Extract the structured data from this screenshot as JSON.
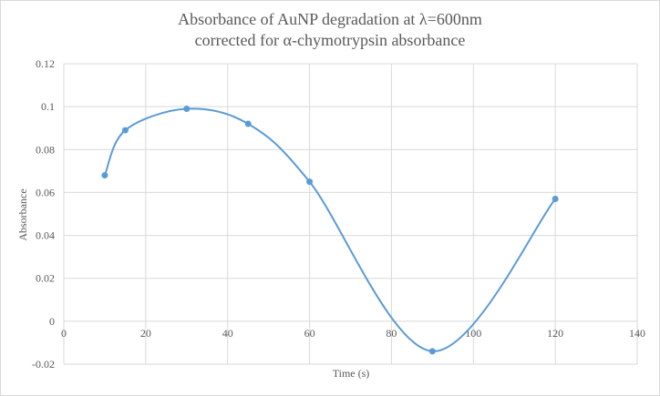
{
  "chart_data": {
    "type": "line",
    "title_line1": "Absorbance of AuNP degradation at λ=600nm",
    "title_line2": "corrected for α-chymotrypsin absorbance",
    "xlabel": "Time (s)",
    "ylabel": "Absorbance",
    "xlim": [
      0,
      140
    ],
    "ylim": [
      -0.02,
      0.12
    ],
    "x_ticks": [
      0,
      20,
      40,
      60,
      80,
      100,
      120,
      140
    ],
    "y_ticks": [
      -0.02,
      0,
      0.02,
      0.04,
      0.06,
      0.08,
      0.1,
      0.12
    ],
    "x_tick_labels": [
      "0",
      "20",
      "40",
      "60",
      "80",
      "100",
      "120",
      "140"
    ],
    "y_tick_labels": [
      "-0.02",
      "0",
      "0.02",
      "0.04",
      "0.06",
      "0.08",
      "0.1",
      "0.12"
    ],
    "grid": true,
    "smooth": true,
    "series": [
      {
        "x": [
          10,
          15,
          30,
          45,
          60,
          90,
          120
        ],
        "y": [
          0.068,
          0.089,
          0.099,
          0.092,
          0.065,
          -0.014,
          0.057
        ],
        "color": "#5b9bd5"
      }
    ],
    "colors": {
      "grid": "#d9d9d9",
      "text": "#595959",
      "series": "#5b9bd5"
    }
  }
}
